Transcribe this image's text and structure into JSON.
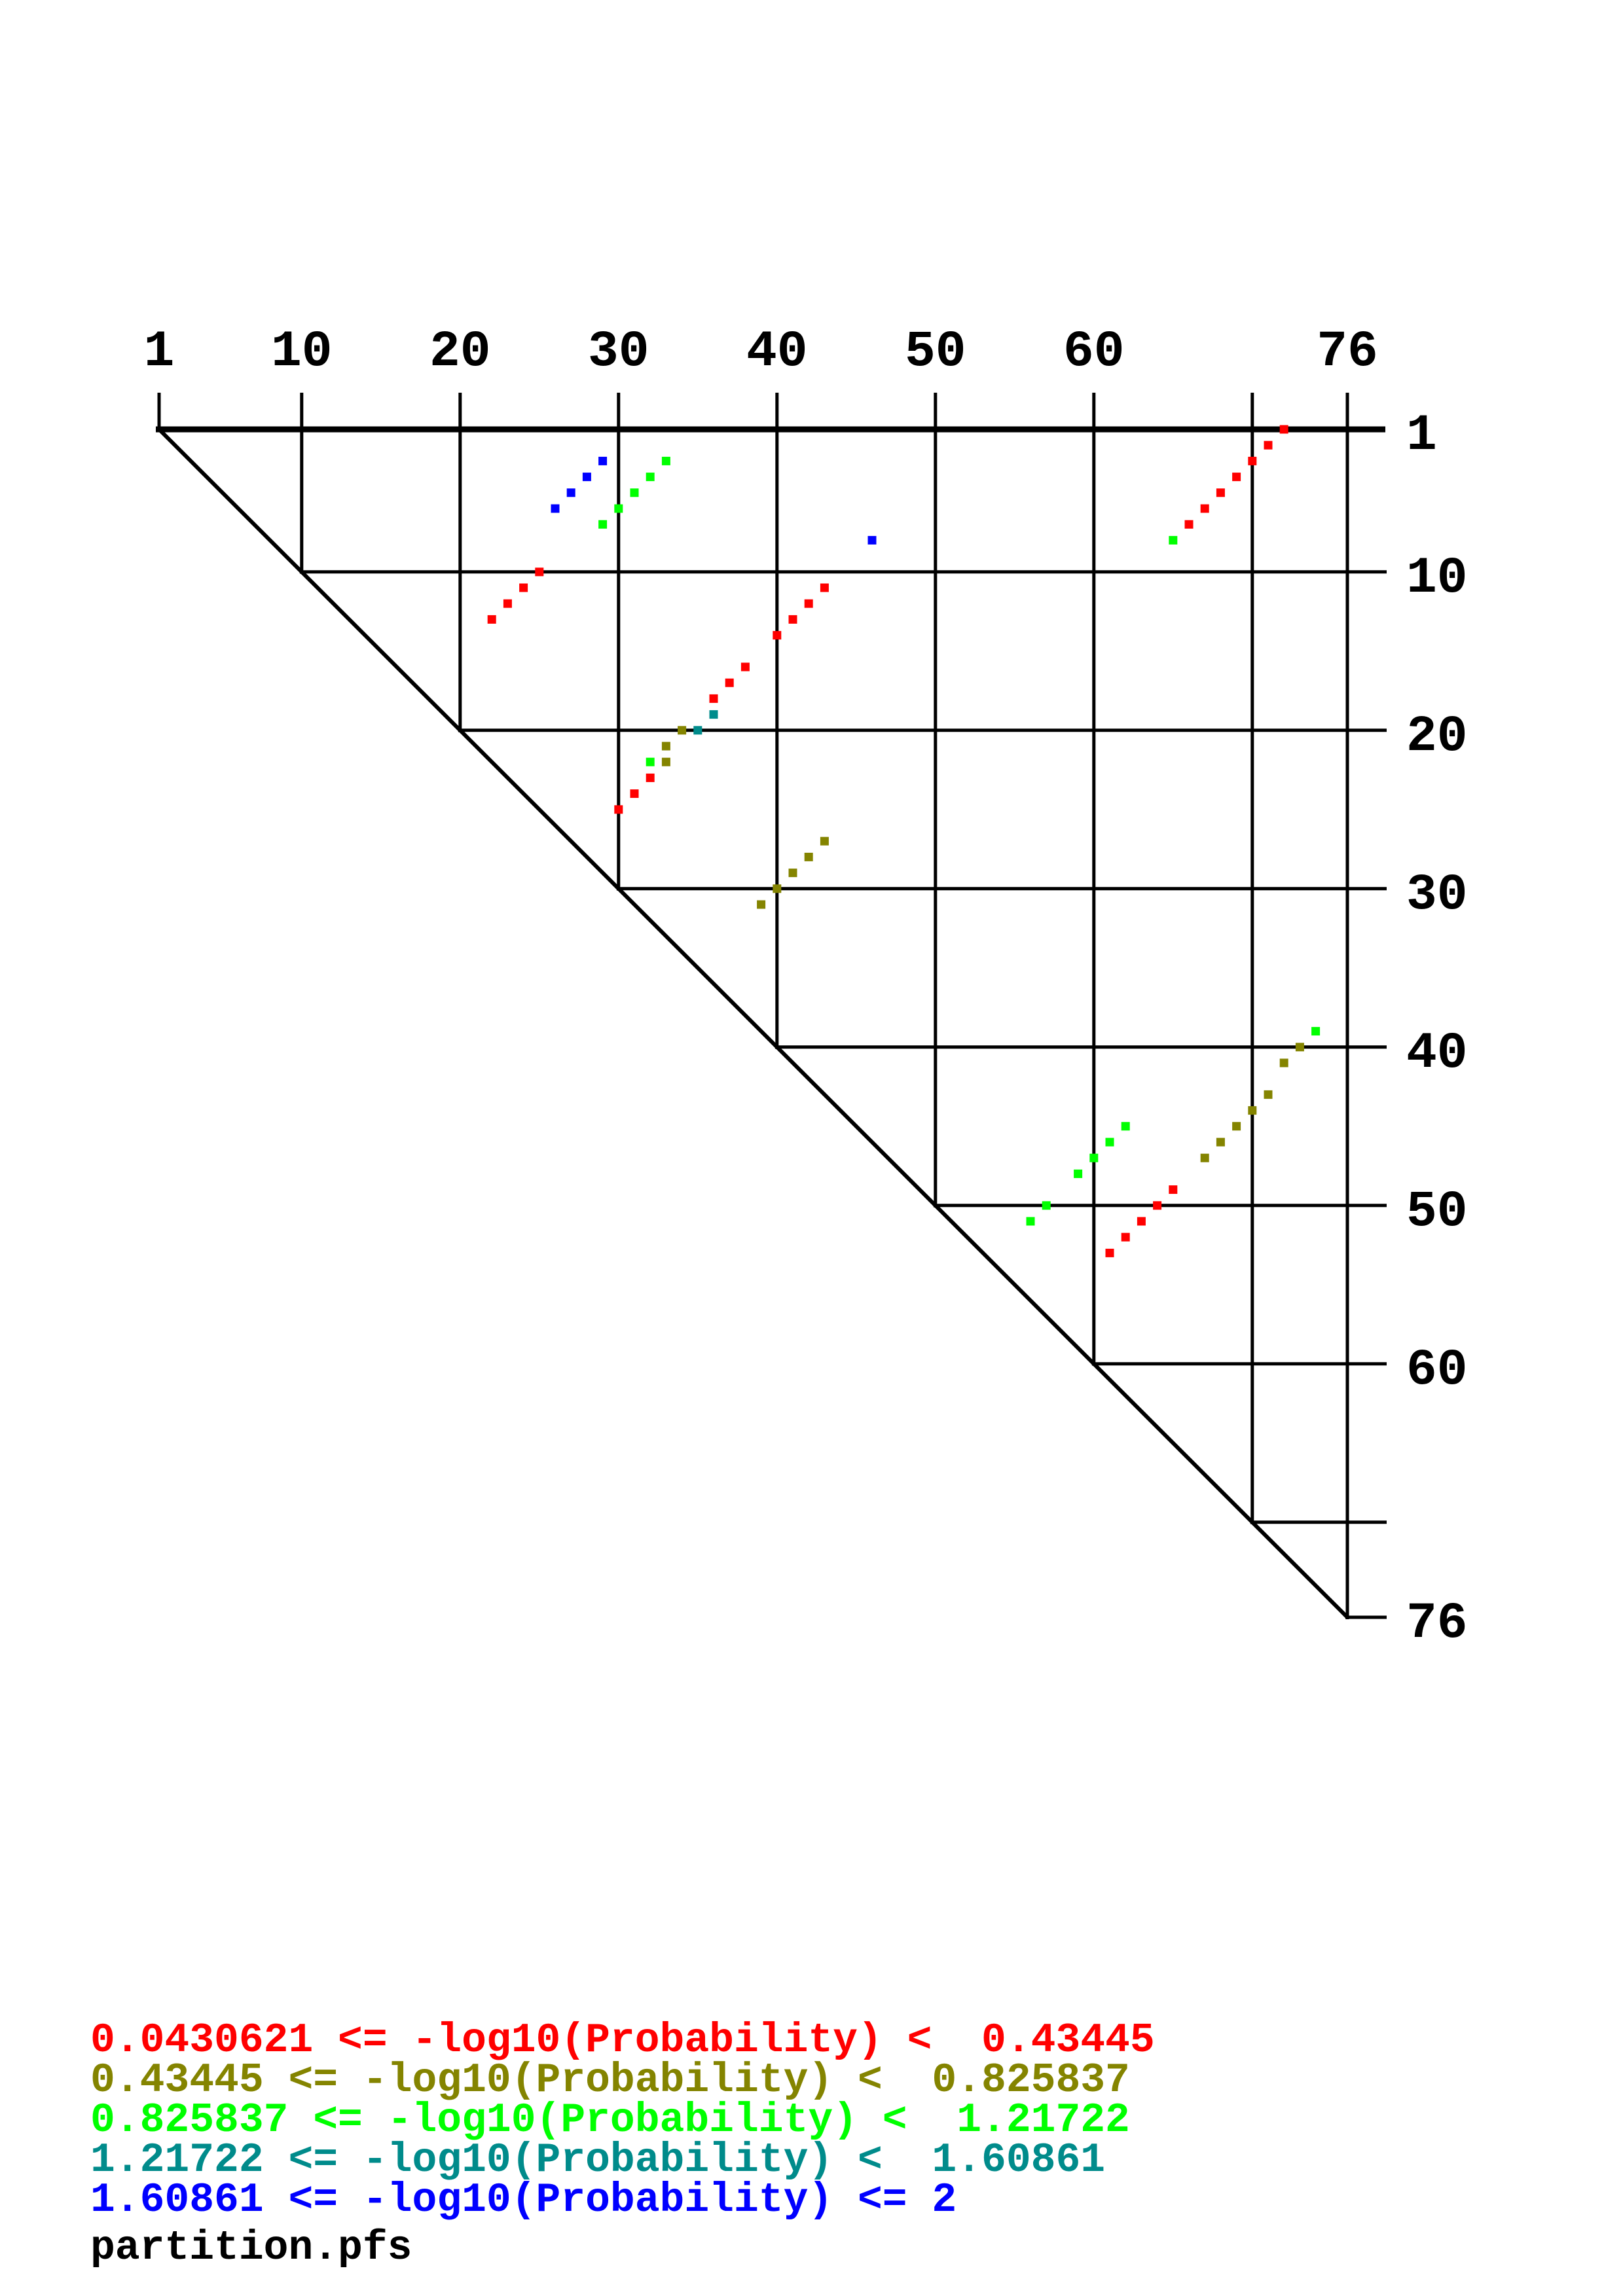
{
  "footer": "partition.pfs",
  "colors": {
    "bin1": "#ff0000",
    "bin2": "#848400",
    "bin3": "#00ff00",
    "bin4": "#008b8b",
    "bin5": "#0000ff",
    "grid": "#000000",
    "background": "#ffffff"
  },
  "legend": [
    {
      "bin": "bin1",
      "text": "0.0430621 <= -log10(Probability) <  0.43445"
    },
    {
      "bin": "bin2",
      "text": "0.43445 <= -log10(Probability) <  0.825837"
    },
    {
      "bin": "bin3",
      "text": "0.825837 <= -log10(Probability) <  1.21722"
    },
    {
      "bin": "bin4",
      "text": "1.21722 <= -log10(Probability) <  1.60861"
    },
    {
      "bin": "bin5",
      "text": "1.60861 <= -log10(Probability) <= 2"
    }
  ],
  "chart_data": {
    "type": "scatter",
    "plot_kind": "triangular base-pair probability dot plot",
    "title": "partition.pfs",
    "x_axis": {
      "range": [
        1,
        76
      ],
      "tick_labels": [
        "1",
        "10",
        "20",
        "30",
        "40",
        "50",
        "60",
        "76"
      ],
      "label_positions": [
        1,
        10,
        20,
        30,
        40,
        50,
        60,
        76
      ],
      "gridline_positions": [
        1,
        10,
        20,
        30,
        40,
        50,
        60,
        70,
        76
      ]
    },
    "y_axis": {
      "range": [
        1,
        76
      ],
      "tick_labels": [
        "1",
        "10",
        "20",
        "30",
        "40",
        "50",
        "60",
        "76"
      ],
      "label_positions": [
        1,
        10,
        20,
        30,
        40,
        50,
        60,
        76
      ],
      "gridline_positions": [
        10,
        20,
        30,
        40,
        50,
        60,
        70,
        76
      ]
    },
    "series": [
      {
        "bin": "bin1",
        "label": "0.0430621 <= -log10(Probability) < 0.43445",
        "pairs": [
          [
            1,
            72
          ],
          [
            2,
            71
          ],
          [
            3,
            70
          ],
          [
            4,
            69
          ],
          [
            5,
            68
          ],
          [
            6,
            67
          ],
          [
            7,
            66
          ],
          [
            10,
            25
          ],
          [
            11,
            24
          ],
          [
            12,
            23
          ],
          [
            13,
            22
          ],
          [
            11,
            43
          ],
          [
            12,
            42
          ],
          [
            13,
            41
          ],
          [
            14,
            40
          ],
          [
            16,
            38
          ],
          [
            17,
            37
          ],
          [
            18,
            36
          ],
          [
            23,
            32
          ],
          [
            24,
            31
          ],
          [
            25,
            30
          ],
          [
            49,
            65
          ],
          [
            50,
            64
          ],
          [
            51,
            63
          ],
          [
            52,
            62
          ],
          [
            53,
            61
          ]
        ]
      },
      {
        "bin": "bin2",
        "label": "0.43445 <= -log10(Probability) < 0.825837",
        "pairs": [
          [
            20,
            34
          ],
          [
            21,
            33
          ],
          [
            22,
            33
          ],
          [
            27,
            43
          ],
          [
            28,
            42
          ],
          [
            29,
            41
          ],
          [
            30,
            40
          ],
          [
            31,
            39
          ],
          [
            40,
            73
          ],
          [
            41,
            72
          ],
          [
            43,
            71
          ],
          [
            44,
            70
          ],
          [
            45,
            69
          ],
          [
            46,
            68
          ],
          [
            47,
            67
          ]
        ]
      },
      {
        "bin": "bin3",
        "label": "0.825837 <= -log10(Probability) < 1.21722",
        "pairs": [
          [
            3,
            33
          ],
          [
            4,
            32
          ],
          [
            5,
            31
          ],
          [
            6,
            30
          ],
          [
            7,
            29
          ],
          [
            8,
            65
          ],
          [
            22,
            32
          ],
          [
            39,
            74
          ],
          [
            45,
            62
          ],
          [
            46,
            61
          ],
          [
            47,
            60
          ],
          [
            48,
            59
          ],
          [
            50,
            57
          ],
          [
            51,
            56
          ]
        ]
      },
      {
        "bin": "bin4",
        "label": "1.21722 <= -log10(Probability) < 1.60861",
        "pairs": [
          [
            19,
            36
          ],
          [
            20,
            35
          ]
        ]
      },
      {
        "bin": "bin5",
        "label": "1.60861 <= -log10(Probability) <= 2",
        "pairs": [
          [
            3,
            29
          ],
          [
            4,
            28
          ],
          [
            5,
            27
          ],
          [
            6,
            26
          ],
          [
            8,
            46
          ]
        ]
      }
    ]
  }
}
